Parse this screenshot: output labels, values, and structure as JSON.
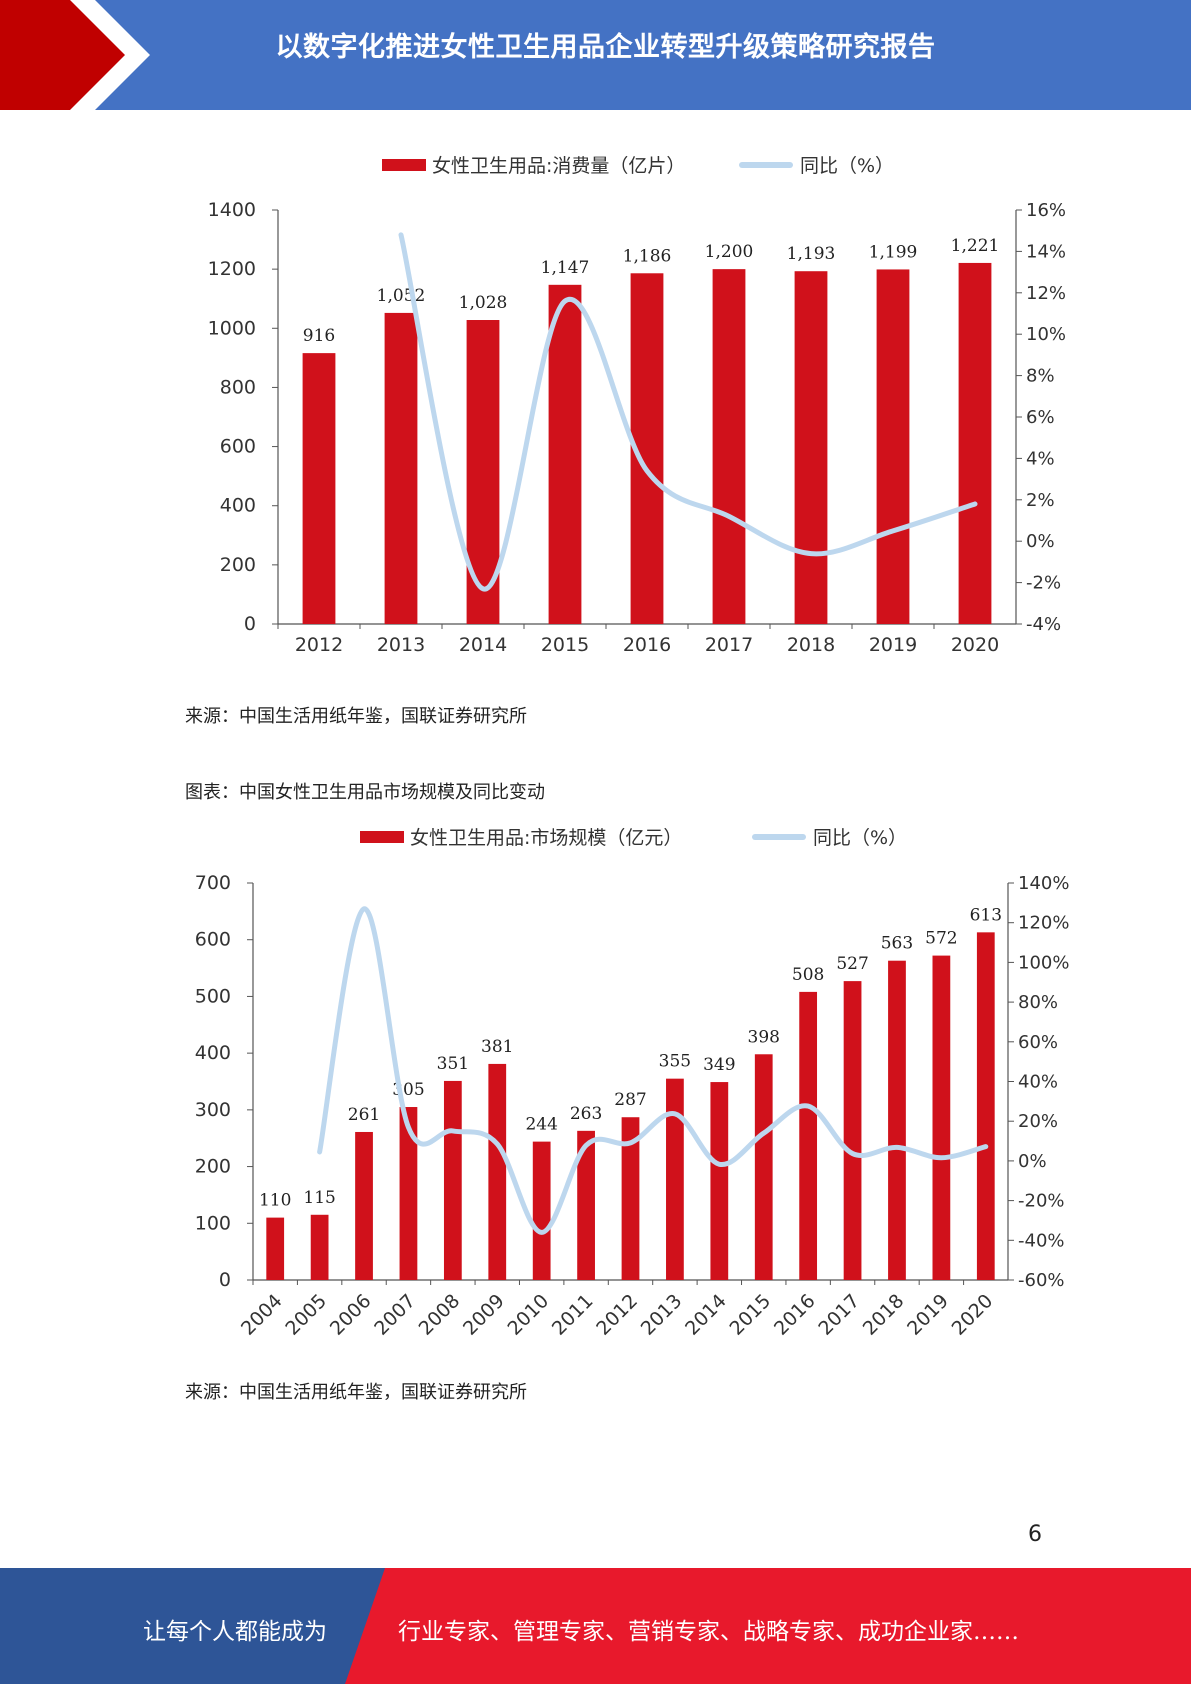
{
  "header": {
    "title": "以数字化推进女性卫生用品企业转型升级策略研究报告"
  },
  "chart_data": [
    {
      "type": "bar",
      "categories": [
        "2012",
        "2013",
        "2014",
        "2015",
        "2016",
        "2017",
        "2018",
        "2019",
        "2020"
      ],
      "series": [
        {
          "name": "女性卫生用品:消费量（亿片）",
          "axis": "left",
          "type": "bar",
          "values": [
            916,
            1052,
            1028,
            1147,
            1186,
            1200,
            1193,
            1199,
            1221
          ],
          "labels": [
            "916",
            "1,052",
            "1,028",
            "1,147",
            "1,186",
            "1,200",
            "1,193",
            "1,199",
            "1,221"
          ]
        },
        {
          "name": "同比（%）",
          "axis": "right",
          "type": "line",
          "values": [
            null,
            14.8,
            -2.3,
            11.6,
            3.4,
            1.2,
            -0.6,
            0.5,
            1.8
          ]
        }
      ],
      "ylim": [
        0,
        1400
      ],
      "yticks": [
        0,
        200,
        400,
        600,
        800,
        1000,
        1200,
        1400
      ],
      "y2lim": [
        -4,
        16
      ],
      "y2ticks": [
        "-4%",
        "-2%",
        "0%",
        "2%",
        "4%",
        "6%",
        "8%",
        "10%",
        "12%",
        "14%",
        "16%"
      ],
      "legend": "top-center",
      "colors": {
        "bar": "#d0111b",
        "line": "#bdd7ee"
      }
    },
    {
      "type": "bar",
      "caption": "图表：中国女性卫生用品市场规模及同比变动",
      "categories": [
        "2004",
        "2005",
        "2006",
        "2007",
        "2008",
        "2009",
        "2010",
        "2011",
        "2012",
        "2013",
        "2014",
        "2015",
        "2016",
        "2017",
        "2018",
        "2019",
        "2020"
      ],
      "series": [
        {
          "name": "女性卫生用品:市场规模（亿元）",
          "axis": "left",
          "type": "bar",
          "values": [
            110,
            115,
            261,
            305,
            351,
            381,
            244,
            263,
            287,
            355,
            349,
            398,
            508,
            527,
            563,
            572,
            613
          ],
          "labels": [
            "110",
            "115",
            "261",
            "305",
            "351",
            "381",
            "244",
            "263",
            "287",
            "355",
            "349",
            "398",
            "508",
            "527",
            "563",
            "572",
            "613"
          ]
        },
        {
          "name": "同比（%）",
          "axis": "right",
          "type": "line",
          "values": [
            null,
            4.5,
            127,
            16.9,
            15.1,
            8.5,
            -36,
            7.8,
            9.1,
            23.7,
            -1.7,
            14,
            27.6,
            3.7,
            6.8,
            1.6,
            7.2
          ]
        }
      ],
      "ylim": [
        0,
        700
      ],
      "yticks": [
        0,
        100,
        200,
        300,
        400,
        500,
        600,
        700
      ],
      "y2lim": [
        -60,
        140
      ],
      "y2ticks": [
        "-60%",
        "-40%",
        "-20%",
        "0%",
        "20%",
        "40%",
        "60%",
        "80%",
        "100%",
        "120%",
        "140%"
      ],
      "legend": "top-center",
      "colors": {
        "bar": "#d0111b",
        "line": "#bdd7ee"
      }
    }
  ],
  "sources": [
    "来源：中国生活用纸年鉴，国联证券研究所",
    "来源：中国生活用纸年鉴，国联证券研究所"
  ],
  "page_number": "6",
  "footer": {
    "left": "让每个人都能成为",
    "right": "行业专家、管理专家、营销专家、战略专家、成功企业家……",
    "colors": {
      "blue": "#2e5597",
      "red": "#e8192c"
    }
  }
}
